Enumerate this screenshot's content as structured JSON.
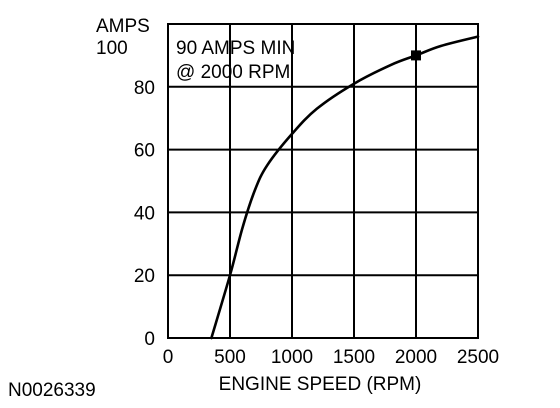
{
  "figure_id": "N0026339",
  "chart_data": {
    "type": "line",
    "xlabel": "ENGINE SPEED (RPM)",
    "ylabel": "AMPS",
    "xlim": [
      0,
      2500
    ],
    "ylim": [
      0,
      100
    ],
    "x_ticks": [
      "0",
      "500",
      "1000",
      "1500",
      "2000",
      "2500"
    ],
    "y_ticks": [
      "0",
      "20",
      "40",
      "60",
      "80",
      "100"
    ],
    "grid": true,
    "series": [
      {
        "x": [
          350,
          500,
          600,
          700,
          800,
          1000,
          1200,
          1500,
          1800,
          2000,
          2200,
          2500
        ],
        "y": [
          0,
          20,
          35,
          47,
          55,
          65,
          73,
          81,
          87,
          90,
          93,
          96
        ]
      }
    ],
    "marker": {
      "x": 2000,
      "y": 90
    },
    "annotation": [
      "90 AMPS MIN",
      "@ 2000 RPM"
    ]
  }
}
